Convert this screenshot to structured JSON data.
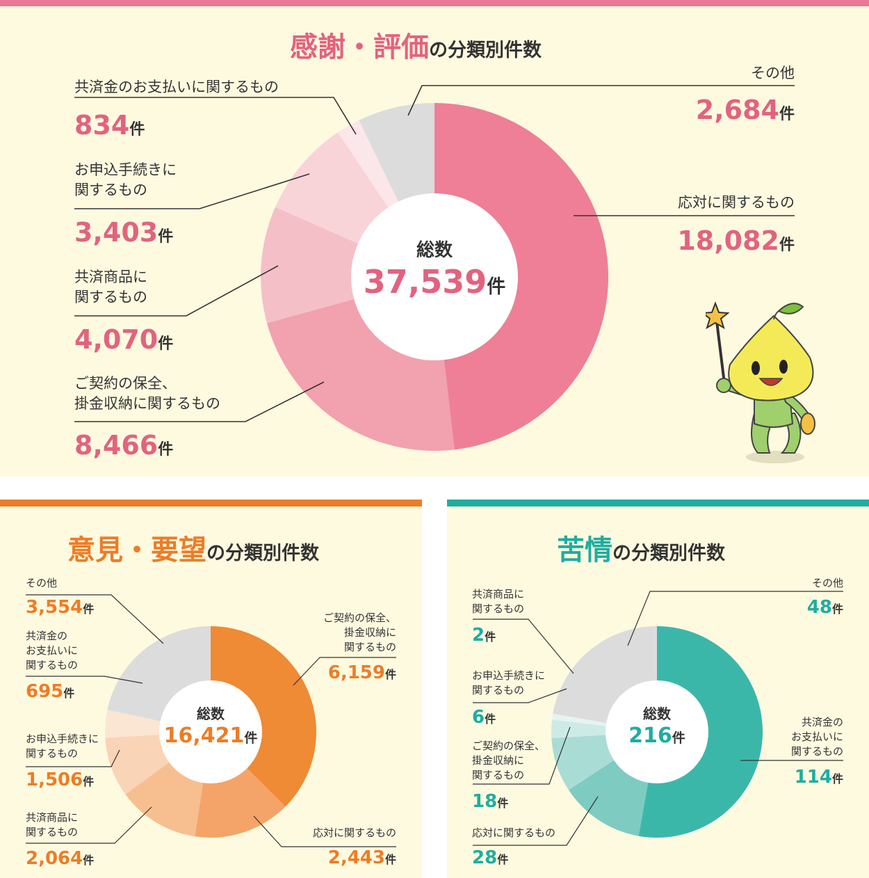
{
  "colors": {
    "pink": "#e2637f",
    "orange": "#ec7d27",
    "teal": "#1fada0",
    "leader": "#333333",
    "center": "#ffffff"
  },
  "unit": "件",
  "center_title": "総数",
  "title_suffix": "の分類別件数",
  "chart_data": [
    {
      "type": "pie",
      "title": "感謝・評価",
      "total": "37,539",
      "slices": [
        {
          "label": "応対に関するもの",
          "value": 18082,
          "display": "18,082",
          "color": "#ee7f96"
        },
        {
          "label": "ご契約の保全、掛金収納に関するもの",
          "value": 8466,
          "display": "8,466",
          "color": "#f2a1ae"
        },
        {
          "label": "共済商品に関するもの",
          "value": 4070,
          "display": "4,070",
          "color": "#f5bfc8"
        },
        {
          "label": "お申込手続きに関するもの",
          "value": 3403,
          "display": "3,403",
          "color": "#f8d4d9"
        },
        {
          "label": "共済金のお支払いに関するもの",
          "value": 834,
          "display": "834",
          "color": "#fbe6e9"
        },
        {
          "label": "その他",
          "value": 2684,
          "display": "2,684",
          "color": "#dcdcdc"
        }
      ]
    },
    {
      "type": "pie",
      "title": "意見・要望",
      "total": "16,421",
      "slices": [
        {
          "label": "ご契約の保全、掛金収納に関するもの",
          "value": 6159,
          "display": "6,159",
          "color": "#ef8a35"
        },
        {
          "label": "応対に関するもの",
          "value": 2443,
          "display": "2,443",
          "color": "#f4a468"
        },
        {
          "label": "共済商品に関するもの",
          "value": 2064,
          "display": "2,064",
          "color": "#f7bf90"
        },
        {
          "label": "お申込手続きに関するもの",
          "value": 1506,
          "display": "1,506",
          "color": "#f9d4b6"
        },
        {
          "label": "共済金のお支払いに関するもの",
          "value": 695,
          "display": "695",
          "color": "#fbe6d3"
        },
        {
          "label": "その他",
          "value": 3554,
          "display": "3,554",
          "color": "#dcdcdc"
        }
      ]
    },
    {
      "type": "pie",
      "title": "苦情",
      "total": "216",
      "slices": [
        {
          "label": "共済金のお支払いに関するもの",
          "value": 114,
          "display": "114",
          "color": "#3bb7aa"
        },
        {
          "label": "応対に関するもの",
          "value": 28,
          "display": "28",
          "color": "#7ecbc1"
        },
        {
          "label": "ご契約の保全、掛金収納に関するもの",
          "value": 18,
          "display": "18",
          "color": "#a9dcd5"
        },
        {
          "label": "お申込手続きに関するもの",
          "value": 6,
          "display": "6",
          "color": "#cdebe6"
        },
        {
          "label": "共済商品に関するもの",
          "value": 2,
          "display": "2",
          "color": "#e4f4f1"
        },
        {
          "label": "その他",
          "value": 48,
          "display": "48",
          "color": "#dcdcdc"
        }
      ]
    }
  ],
  "labels": {
    "p1": {
      "s0": [
        "応対に関するもの"
      ],
      "s1": [
        "ご契約の保全、",
        "掛金収納に関するもの"
      ],
      "s2": [
        "共済商品に",
        "関するもの"
      ],
      "s3": [
        "お申込手続きに",
        "関するもの"
      ],
      "s4": [
        "共済金のお支払いに関するもの"
      ],
      "s5": [
        "その他"
      ]
    },
    "p2": {
      "s0": [
        "ご契約の保全、",
        "掛金収納に",
        "関するもの"
      ],
      "s1": [
        "応対に関するもの"
      ],
      "s2": [
        "共済商品に",
        "関するもの"
      ],
      "s3": [
        "お申込手続きに",
        "関するもの"
      ],
      "s4": [
        "共済金の",
        "お支払いに",
        "関するもの"
      ],
      "s5": [
        "その他"
      ]
    },
    "p3": {
      "s0": [
        "共済金の",
        "お支払いに",
        "関するもの"
      ],
      "s1": [
        "応対に関するもの"
      ],
      "s2": [
        "ご契約の保全、",
        "掛金収納に",
        "関するもの"
      ],
      "s3": [
        "お申込手続きに",
        "関するもの"
      ],
      "s4": [
        "共済商品に",
        "関するもの"
      ],
      "s5": [
        "その他"
      ]
    }
  },
  "mascot": {
    "name": "mascot",
    "star": "star-wand-icon"
  }
}
